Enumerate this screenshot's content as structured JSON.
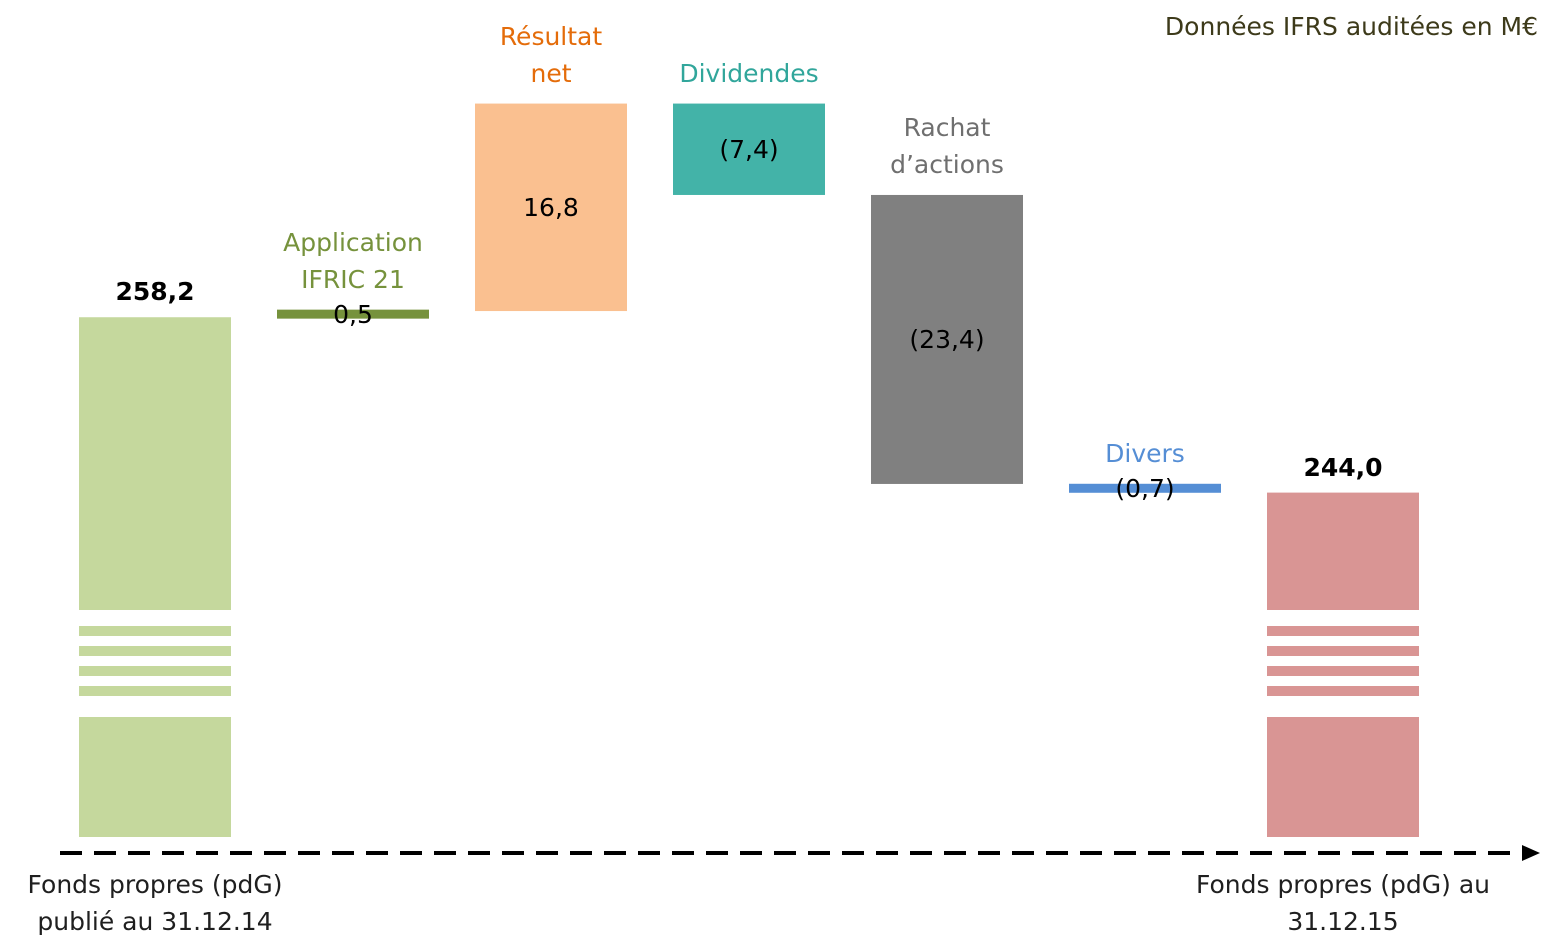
{
  "chart_data": {
    "type": "waterfall",
    "subtitle": "Données IFRS auditées en M€",
    "categories": [
      "Fonds propres (pdG) publié au 31.12.14",
      "Application IFRIC 21",
      "Résultat net",
      "Dividendes",
      "Rachat d’actions",
      "Divers",
      "Fonds propres (pdG) au 31.12.15"
    ],
    "values": [
      258.2,
      0.5,
      16.8,
      -7.4,
      -23.4,
      -0.7,
      244.0
    ],
    "value_labels": [
      "258,2",
      "0,5",
      "16,8",
      "(7,4)",
      "(23,4)",
      "(0,7)",
      "244,0"
    ],
    "totals": [
      true,
      false,
      false,
      false,
      false,
      false,
      true
    ],
    "colors": [
      "#c5d89d",
      "#76923c",
      "#fac090",
      "#43b3a8",
      "#808080",
      "#558ed5",
      "#d99594"
    ],
    "label_colors": [
      "#1f1f1f",
      "#76923c",
      "#e46c0a",
      "#31a69b",
      "#6f6f6f",
      "#558ed5",
      "#1f1f1f"
    ],
    "ylim": [
      240,
      280
    ]
  }
}
